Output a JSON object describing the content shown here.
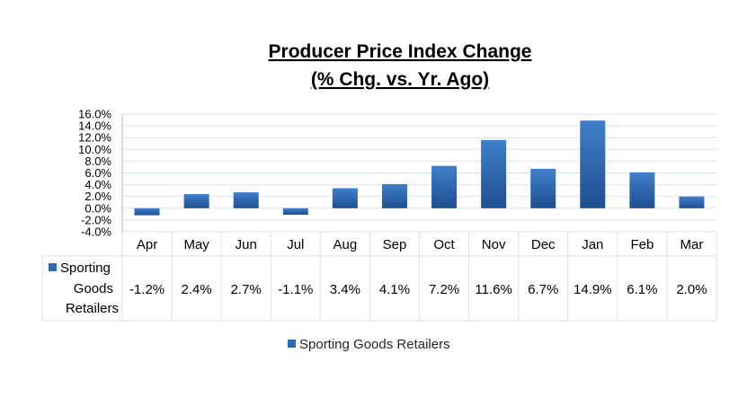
{
  "chart_data": {
    "type": "bar",
    "title": "Producer Price Index Change",
    "subtitle": "(% Chg. vs. Yr. Ago)",
    "categories": [
      "Apr",
      "May",
      "Jun",
      "Jul",
      "Aug",
      "Sep",
      "Oct",
      "Nov",
      "Dec",
      "Jan",
      "Feb",
      "Mar"
    ],
    "series": [
      {
        "name": "Sporting Goods Retailers",
        "name_lines": [
          "Sporting",
          "Goods",
          "Retailers"
        ],
        "values": [
          -1.2,
          2.4,
          2.7,
          -1.1,
          3.4,
          4.1,
          7.2,
          11.6,
          6.7,
          14.9,
          6.1,
          2.0
        ],
        "labels": [
          "-1.2%",
          "2.4%",
          "2.7%",
          "-1.1%",
          "3.4%",
          "4.1%",
          "7.2%",
          "11.6%",
          "6.7%",
          "14.9%",
          "6.1%",
          "2.0%"
        ],
        "color": "#2e6ab4"
      }
    ],
    "ylim": [
      -4,
      16
    ],
    "yticks": [
      "16.0%",
      "14.0%",
      "12.0%",
      "10.0%",
      "8.0%",
      "6.0%",
      "4.0%",
      "2.0%",
      "0.0%",
      "-2.0%",
      "-4.0%"
    ],
    "ytick_values": [
      16,
      14,
      12,
      10,
      8,
      6,
      4,
      2,
      0,
      -2,
      -4
    ],
    "grid": true,
    "data_table": true,
    "legend": "bottom",
    "colors": {
      "grid": "#d9e1ef",
      "axis": "#a6b8d8",
      "bar": "#2e6ab4",
      "bar_dark": "#1f4f8f"
    }
  }
}
